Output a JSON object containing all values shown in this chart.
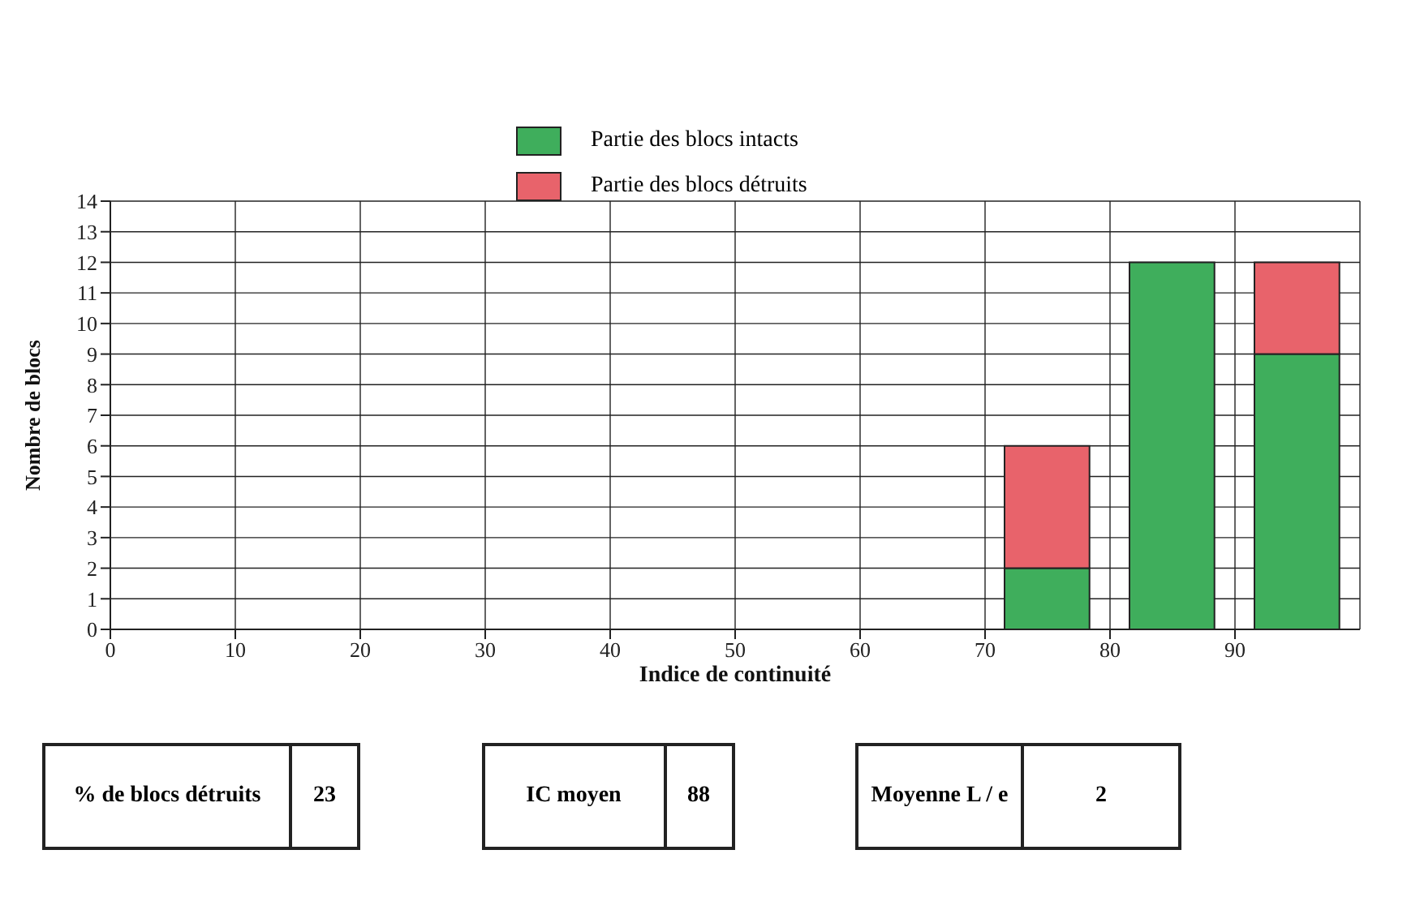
{
  "chart_data": {
    "type": "bar",
    "xlabel": "Indice de continuité",
    "ylabel": "Nombre de blocs",
    "x": [
      75,
      85,
      95
    ],
    "stacked": true,
    "series": [
      {
        "name": "Partie des blocs intacts",
        "color": "#3fae5c",
        "values": [
          2,
          12,
          9
        ]
      },
      {
        "name": "Partie des blocs détruits",
        "color": "#e8636b",
        "values": [
          4,
          0,
          3
        ]
      }
    ],
    "xlim": [
      0,
      100
    ],
    "xticks": [
      0,
      10,
      20,
      30,
      40,
      50,
      60,
      70,
      80,
      90
    ],
    "ylim": [
      0,
      14
    ],
    "yticks": [
      0,
      1,
      2,
      3,
      4,
      5,
      6,
      7,
      8,
      9,
      10,
      11,
      12,
      13,
      14
    ],
    "grid": true,
    "legend": "top",
    "annotations": [
      "% de blocs détruits",
      "23",
      "IC moyen",
      "88",
      "Moyenne L / e",
      "2"
    ]
  }
}
